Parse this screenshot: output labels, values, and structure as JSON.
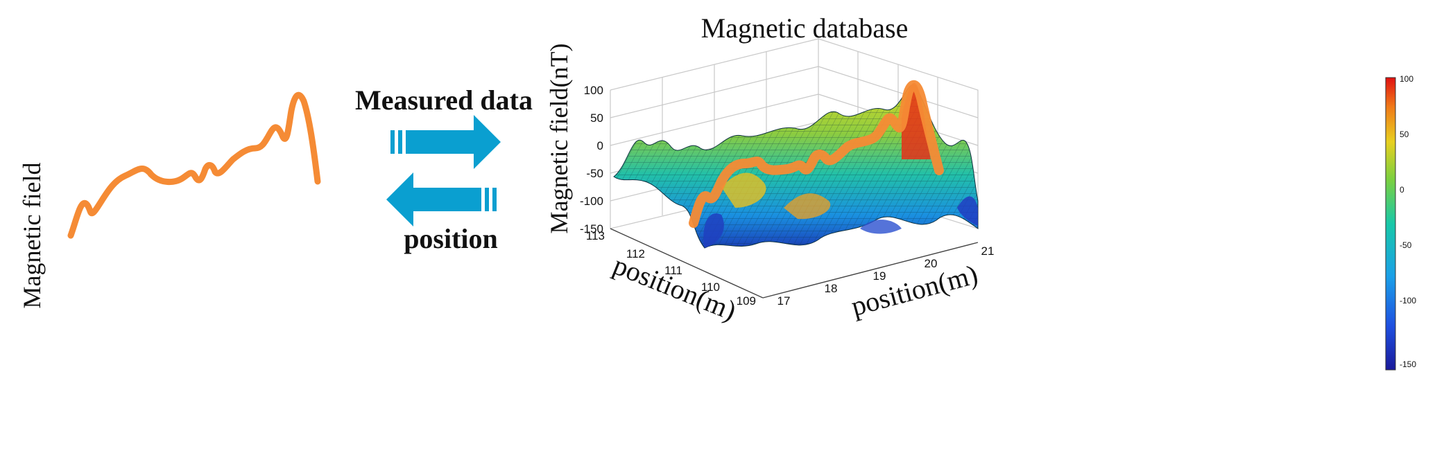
{
  "left_panel": {
    "ylabel": "Magnetic field"
  },
  "exchange": {
    "top_label": "Measured data",
    "bottom_label": "position",
    "arrow_color": "#0a9fd0"
  },
  "database_plot": {
    "title": "Magnetic database",
    "zlabel": "Magnetic field(nT)",
    "z_ticks": [
      "100",
      "50",
      "0",
      "-50",
      "-100",
      "-150"
    ],
    "left_axis": {
      "label": "position(m)",
      "ticks": [
        "113",
        "112",
        "111",
        "110",
        "109"
      ]
    },
    "right_axis": {
      "label": "position(m)",
      "ticks": [
        "17",
        "18",
        "19",
        "20",
        "21"
      ]
    },
    "trace_color": "#f58b35"
  },
  "colorbar": {
    "ticks": [
      "100",
      "50",
      "0",
      "-50",
      "-100",
      "-150"
    ]
  }
}
